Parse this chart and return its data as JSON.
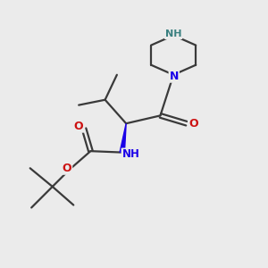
{
  "background_color": "#ebebeb",
  "bond_color": "#3a3a3a",
  "bond_width": 1.6,
  "N_blue": "#1a00e8",
  "N_teal": "#3a8080",
  "O_red": "#cc1111",
  "figsize": [
    3.0,
    3.0
  ],
  "dpi": 100,
  "xlim": [
    0,
    10
  ],
  "ylim": [
    0,
    10
  ]
}
